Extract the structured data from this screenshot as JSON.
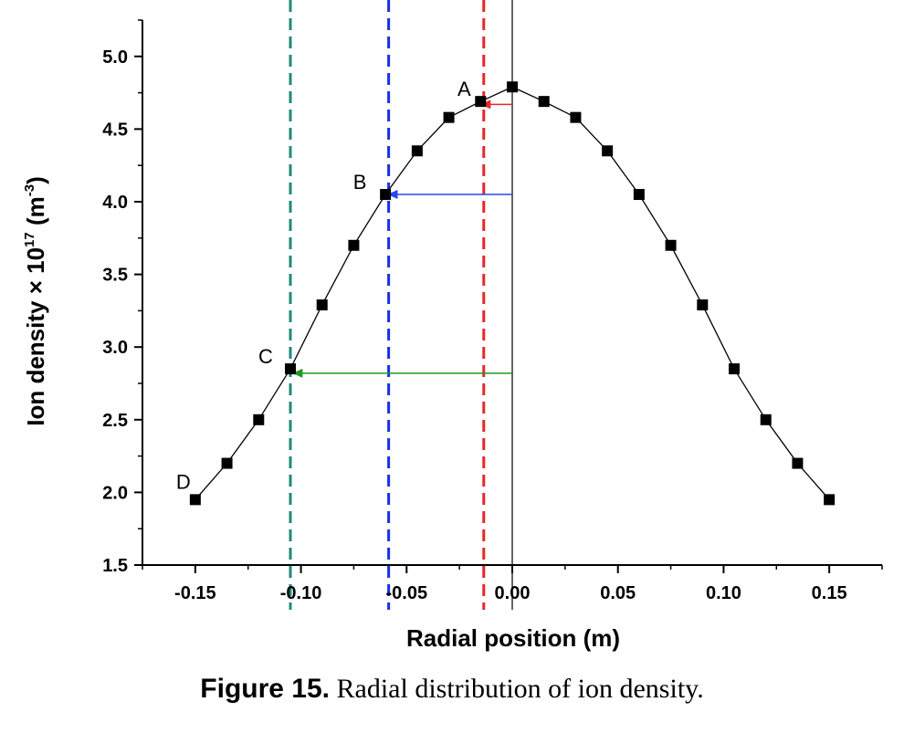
{
  "chart_data": {
    "type": "line",
    "xlabel": "Radial position (m)",
    "ylabel_main": "Ion density × 10",
    "ylabel_exp": "17",
    "ylabel_unit_open": " (m",
    "ylabel_unit_exp": "-3",
    "ylabel_unit_close": ")",
    "xlim": [
      -0.175,
      0.175
    ],
    "ylim": [
      1.5,
      5.25
    ],
    "xticks": [
      -0.15,
      -0.1,
      -0.05,
      0.0,
      0.05,
      0.1,
      0.15
    ],
    "xtick_labels": [
      "-0.15",
      "-0.10",
      "-0.05",
      "0.00",
      "0.05",
      "0.10",
      "0.15"
    ],
    "yticks": [
      1.5,
      2.0,
      2.5,
      3.0,
      3.5,
      4.0,
      4.5,
      5.0
    ],
    "ytick_labels": [
      "1.5",
      "2.0",
      "2.5",
      "3.0",
      "3.5",
      "4.0",
      "4.5",
      "5.0"
    ],
    "series": [
      {
        "marker": "square",
        "color": "#000000",
        "x": [
          -0.15,
          -0.135,
          -0.12,
          -0.105,
          -0.09,
          -0.075,
          -0.06,
          -0.045,
          -0.03,
          -0.015,
          0.0,
          0.015,
          0.03,
          0.045,
          0.06,
          0.075,
          0.09,
          0.105,
          0.12,
          0.135,
          0.15
        ],
        "y": [
          1.95,
          2.2,
          2.5,
          2.85,
          3.29,
          3.7,
          4.05,
          4.35,
          4.58,
          4.69,
          4.79,
          4.69,
          4.58,
          4.35,
          4.05,
          3.7,
          3.29,
          2.85,
          2.5,
          2.2,
          1.95
        ]
      }
    ],
    "point_labels": [
      {
        "text": "A",
        "x": -0.015,
        "y": 4.69
      },
      {
        "text": "B",
        "x": -0.06,
        "y": 4.05
      },
      {
        "text": "C",
        "x": -0.105,
        "y": 2.85
      },
      {
        "text": "D",
        "x": -0.15,
        "y": 1.95
      }
    ],
    "vertical_lines": [
      {
        "x": 0.0,
        "style": "solid",
        "color": "#000000"
      },
      {
        "x": -0.0135,
        "style": "dashed",
        "color": "#e8262b"
      },
      {
        "x": -0.0585,
        "style": "dashed",
        "color": "#1a2ee8"
      },
      {
        "x": -0.105,
        "style": "dashed",
        "color": "#1f8a7a"
      }
    ],
    "arrows": [
      {
        "from_x": 0.0,
        "to_x": -0.015,
        "y": 4.67,
        "color": "#e8262b"
      },
      {
        "from_x": 0.0,
        "to_x": -0.059,
        "y": 4.05,
        "color": "#2a44ee"
      },
      {
        "from_x": 0.0,
        "to_x": -0.104,
        "y": 2.82,
        "color": "#1f9a1f"
      }
    ]
  },
  "caption": {
    "label": "Figure 15.",
    "text": " Radial distribution of ion density."
  }
}
